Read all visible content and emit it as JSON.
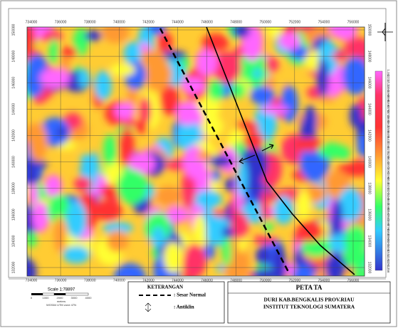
{
  "map": {
    "x_labels": [
      "734000",
      "736000",
      "738000",
      "740000",
      "742000",
      "744000",
      "746000",
      "748000",
      "750000",
      "752000",
      "754000",
      "756000"
    ],
    "y_labels": [
      "150000",
      "148000",
      "146000",
      "144000",
      "142000",
      "140000",
      "138000",
      "136000",
      "134000",
      "132000"
    ],
    "colorbar": {
      "labels": [
        "1.342",
        "1.217",
        "1.123",
        "1.041",
        "0.968",
        "0.901",
        "0.840",
        "0.783",
        "0.733",
        "0.683",
        "0.622",
        "0.556",
        "0.491",
        "0.422",
        "0.346",
        "0.274",
        "0.209",
        "0.142",
        "0.072",
        "0.002",
        "-0.068",
        "-0.139",
        "-0.210",
        "-0.276",
        "-0.348",
        "-0.420",
        "-0.483",
        "-0.547",
        "-0.622",
        "-0.697",
        "-0.765",
        "-0.838",
        "-0.904",
        "-0.976",
        "-1.040",
        "-1.114",
        "-1.183",
        "-1.261",
        "-1.356"
      ]
    },
    "legend": {
      "title": "KETERANGAN",
      "items": [
        ": Sesar Normal",
        ": Antiklin"
      ]
    },
    "title_block": {
      "title": "PETA TA",
      "lines": [
        "DURI KAB.BENGKALIS PROV.RIAU",
        "INSTITUT TEKNOLOGI SUMATERA"
      ]
    },
    "scale": {
      "text": "Scale 1:78897",
      "ticks": [
        "0",
        "1000",
        "2000",
        "3000",
        "4000"
      ],
      "unit": "meters",
      "datum": "WGS84 UTM zone 47N"
    }
  }
}
